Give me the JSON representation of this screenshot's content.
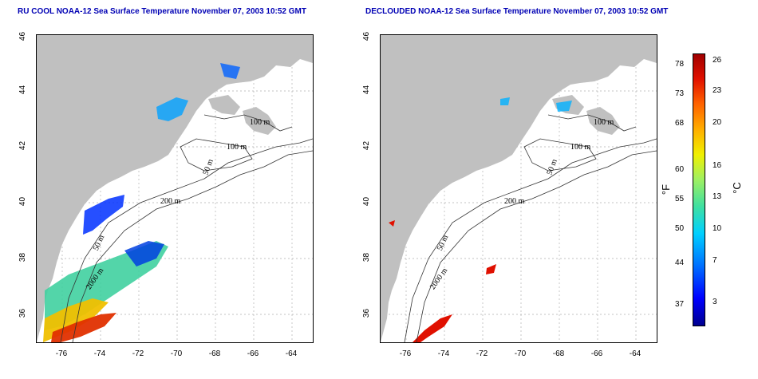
{
  "panels": [
    {
      "title": "RU COOL NOAA-12 Sea Surface Temperature November 07, 2003 10:52 GMT",
      "contour_labels": [
        "100 m",
        "100 m",
        "50 m",
        "200 m",
        "50 m",
        "2000 m"
      ]
    },
    {
      "title": "DECLOUDED NOAA-12 Sea Surface Temperature November 07, 2003 10:52 GMT",
      "contour_labels": [
        "100 m",
        "100 m",
        "50 m",
        "200 m",
        "50 m",
        "2000 m"
      ]
    }
  ],
  "axes": {
    "lon_ticks": [
      "-76",
      "-74",
      "-72",
      "-70",
      "-68",
      "-66",
      "-64"
    ],
    "lat_ticks": [
      "36",
      "38",
      "40",
      "42",
      "44",
      "46"
    ]
  },
  "colorbar": {
    "fahrenheit_ticks": [
      "78",
      "73",
      "68",
      "60",
      "55",
      "50",
      "44",
      "37"
    ],
    "celsius_ticks": [
      "26",
      "23",
      "20",
      "16",
      "13",
      "10",
      "7",
      "3"
    ],
    "fahrenheit_unit": "°F",
    "celsius_unit": "°C"
  },
  "colors": {
    "land": "#c0c0c0",
    "title": "#0000b4",
    "cold": "#0000ff",
    "warm": "#e01000"
  }
}
